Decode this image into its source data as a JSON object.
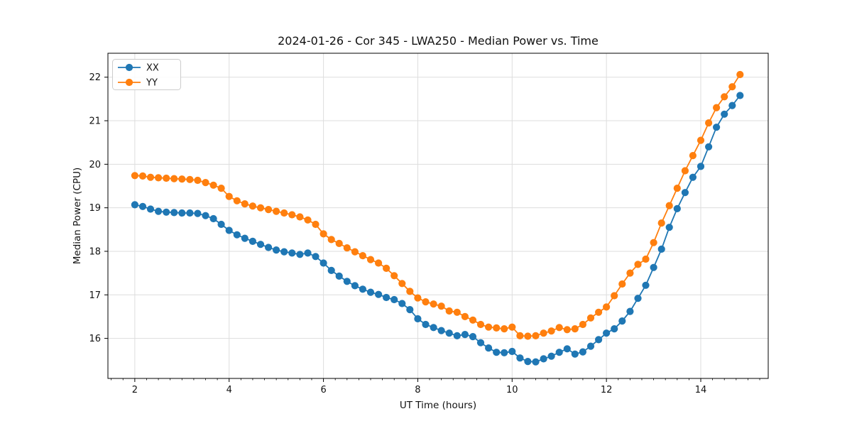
{
  "page_title": "2024-01-26 - Cor 345 - LWA250 - Median Power vs. Time",
  "chart_data": {
    "type": "line",
    "title": "2024-01-26 - Cor 345 - LWA250 - Median Power vs. Time",
    "xlabel": "UT Time (hours)",
    "ylabel": "Median Power (CPU)",
    "xlim": [
      1.43,
      15.43
    ],
    "ylim": [
      15.08,
      22.55
    ],
    "xticks": [
      2,
      4,
      6,
      8,
      10,
      12,
      14
    ],
    "yticks": [
      16,
      17,
      18,
      19,
      20,
      21,
      22
    ],
    "minor_tick_step_x": 0.25,
    "grid": true,
    "grid_color": "#dddddd",
    "spine_color": "#000000",
    "legend_position": "upper left",
    "marker": "circle",
    "x": [
      2.0,
      2.167,
      2.333,
      2.5,
      2.667,
      2.833,
      3.0,
      3.167,
      3.333,
      3.5,
      3.667,
      3.833,
      4.0,
      4.167,
      4.333,
      4.5,
      4.667,
      4.833,
      5.0,
      5.167,
      5.333,
      5.5,
      5.667,
      5.833,
      6.0,
      6.167,
      6.333,
      6.5,
      6.667,
      6.833,
      7.0,
      7.167,
      7.333,
      7.5,
      7.667,
      7.833,
      8.0,
      8.167,
      8.333,
      8.5,
      8.667,
      8.833,
      9.0,
      9.167,
      9.333,
      9.5,
      9.667,
      9.833,
      10.0,
      10.167,
      10.333,
      10.5,
      10.667,
      10.833,
      11.0,
      11.167,
      11.333,
      11.5,
      11.667,
      11.833,
      12.0,
      12.167,
      12.333,
      12.5,
      12.667,
      12.833,
      13.0,
      13.167,
      13.333,
      13.5,
      13.667,
      13.833,
      14.0,
      14.167,
      14.333,
      14.5,
      14.667,
      14.833
    ],
    "series": [
      {
        "name": "XX",
        "color": "#1f77b4",
        "values": [
          19.07,
          19.03,
          18.97,
          18.92,
          18.9,
          18.89,
          18.88,
          18.88,
          18.87,
          18.82,
          18.75,
          18.62,
          18.48,
          18.38,
          18.3,
          18.23,
          18.16,
          18.09,
          18.03,
          17.99,
          17.96,
          17.93,
          17.96,
          17.88,
          17.73,
          17.56,
          17.43,
          17.31,
          17.21,
          17.13,
          17.06,
          17.01,
          16.94,
          16.89,
          16.8,
          16.66,
          16.45,
          16.32,
          16.25,
          16.18,
          16.12,
          16.06,
          16.09,
          16.04,
          15.9,
          15.78,
          15.68,
          15.67,
          15.7,
          15.55,
          15.47,
          15.46,
          15.53,
          15.59,
          15.68,
          15.76,
          15.64,
          15.69,
          15.82,
          15.97,
          16.12,
          16.22,
          16.4,
          16.62,
          16.92,
          17.22,
          17.63,
          18.05,
          18.55,
          18.98,
          19.35,
          19.7,
          19.95,
          20.4,
          20.85,
          21.15,
          21.35,
          21.58
        ]
      },
      {
        "name": "YY",
        "color": "#ff7f0e",
        "values": [
          19.74,
          19.73,
          19.7,
          19.69,
          19.68,
          19.67,
          19.66,
          19.65,
          19.63,
          19.58,
          19.52,
          19.45,
          19.26,
          19.16,
          19.09,
          19.04,
          19.0,
          18.96,
          18.92,
          18.88,
          18.84,
          18.79,
          18.72,
          18.62,
          18.4,
          18.27,
          18.18,
          18.08,
          17.99,
          17.9,
          17.81,
          17.73,
          17.61,
          17.44,
          17.26,
          17.08,
          16.93,
          16.84,
          16.79,
          16.74,
          16.63,
          16.6,
          16.5,
          16.42,
          16.32,
          16.26,
          16.24,
          16.22,
          16.26,
          16.06,
          16.05,
          16.06,
          16.12,
          16.17,
          16.25,
          16.2,
          16.22,
          16.32,
          16.47,
          16.6,
          16.72,
          16.98,
          17.25,
          17.5,
          17.7,
          17.82,
          18.2,
          18.65,
          19.05,
          19.45,
          19.85,
          20.2,
          20.55,
          20.95,
          21.3,
          21.55,
          21.78,
          22.06
        ]
      }
    ]
  }
}
